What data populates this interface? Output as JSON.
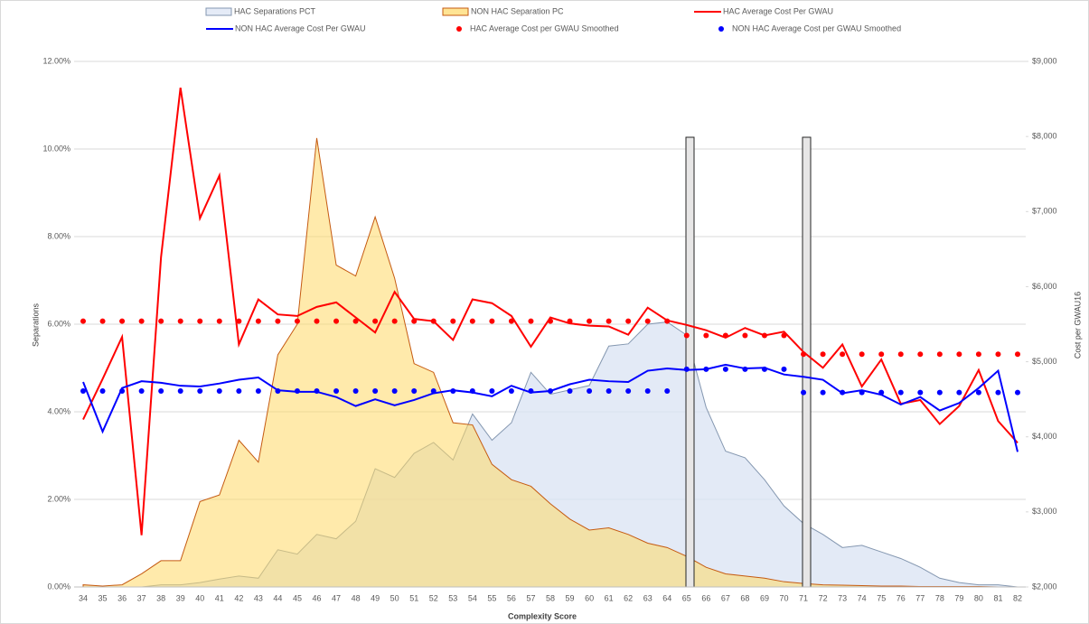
{
  "chart_data": {
    "type": "combo",
    "x_label": "Complexity Score",
    "y_label": "Separations",
    "y2_label": "Cost per GWAU16",
    "categories": [
      "34",
      "35",
      "36",
      "37",
      "38",
      "39",
      "40",
      "41",
      "42",
      "43",
      "44",
      "45",
      "46",
      "47",
      "48",
      "49",
      "50",
      "51",
      "52",
      "53",
      "54",
      "55",
      "56",
      "57",
      "58",
      "59",
      "60",
      "61",
      "62",
      "63",
      "64",
      "65",
      "66",
      "67",
      "68",
      "69",
      "70",
      "71",
      "72",
      "73",
      "74",
      "75",
      "76",
      "77",
      "78",
      "79",
      "80",
      "81",
      "82"
    ],
    "ylim": [
      0,
      12
    ],
    "yticks": [
      {
        "value": 0,
        "label": "0.00%"
      },
      {
        "value": 2,
        "label": "2.00%"
      },
      {
        "value": 4,
        "label": "4.00%"
      },
      {
        "value": 6,
        "label": "6.00%"
      },
      {
        "value": 8,
        "label": "8.00%"
      },
      {
        "value": 10,
        "label": "10.00%"
      },
      {
        "value": 12,
        "label": "12.00%"
      }
    ],
    "y2lim": [
      2000,
      9000
    ],
    "y2ticks": [
      {
        "value": 2000,
        "label": "$2,000"
      },
      {
        "value": 3000,
        "label": "$3,000"
      },
      {
        "value": 4000,
        "label": "$4,000"
      },
      {
        "value": 5000,
        "label": "$5,000"
      },
      {
        "value": 6000,
        "label": "$6,000"
      },
      {
        "value": 7000,
        "label": "$7,000"
      },
      {
        "value": 8000,
        "label": "$8,000"
      },
      {
        "value": 9000,
        "label": "$9,000"
      }
    ],
    "grid": true,
    "legend": "top",
    "series": [
      {
        "name": "HAC Separations PCT",
        "style": "area",
        "color": "#dae3f3",
        "edge": "#8497b0",
        "values": [
          0,
          0,
          0,
          0,
          0.05,
          0.05,
          0.1,
          0.18,
          0.25,
          0.2,
          0.85,
          0.75,
          1.2,
          1.1,
          1.5,
          2.7,
          2.5,
          3.05,
          3.3,
          2.9,
          3.95,
          3.35,
          3.75,
          4.9,
          4.4,
          4.5,
          4.6,
          5.5,
          5.55,
          6.0,
          6.05,
          5.75,
          4.1,
          3.1,
          2.95,
          2.45,
          1.85,
          1.45,
          1.2,
          0.9,
          0.95,
          0.8,
          0.65,
          0.45,
          0.2,
          0.1,
          0.05,
          0.05,
          0
        ]
      },
      {
        "name": "NON HAC Separation PC",
        "style": "area",
        "color": "#ffd966",
        "edge": "#c55a11",
        "values": [
          0.05,
          0.02,
          0.05,
          0.3,
          0.6,
          0.6,
          1.95,
          2.1,
          3.35,
          2.85,
          5.3,
          6.0,
          10.25,
          7.35,
          7.1,
          8.45,
          7.05,
          5.1,
          4.9,
          3.75,
          3.7,
          2.8,
          2.45,
          2.3,
          1.9,
          1.55,
          1.3,
          1.35,
          1.2,
          1.0,
          0.9,
          0.7,
          0.45,
          0.3,
          0.25,
          0.2,
          0.12,
          0.08,
          0.05,
          0.04,
          0.03,
          0.02,
          0.02,
          0.01,
          0.01,
          0.01,
          0.01,
          0,
          0
        ]
      },
      {
        "name": "HAC Average Cost Per GWAU",
        "style": "line",
        "color": "#ff0000",
        "axis": "y2",
        "values": [
          4230,
          4770,
          5330,
          2690,
          6390,
          8650,
          6910,
          7480,
          5230,
          5830,
          5630,
          5610,
          5730,
          5790,
          5590,
          5390,
          5930,
          5570,
          5540,
          5290,
          5830,
          5780,
          5610,
          5200,
          5590,
          5510,
          5480,
          5470,
          5360,
          5720,
          5550,
          5490,
          5420,
          5320,
          5450,
          5350,
          5400,
          5130,
          4920,
          5230,
          4670,
          5030,
          4440,
          4490,
          4170,
          4410,
          4890,
          4210,
          3920
        ]
      },
      {
        "name": "NON HAC Average Cost Per GWAU",
        "style": "line",
        "color": "#0000ff",
        "axis": "y2",
        "values": [
          4730,
          4070,
          4650,
          4740,
          4720,
          4680,
          4670,
          4710,
          4760,
          4790,
          4620,
          4600,
          4600,
          4530,
          4410,
          4500,
          4420,
          4490,
          4580,
          4620,
          4590,
          4540,
          4680,
          4590,
          4610,
          4700,
          4760,
          4740,
          4730,
          4880,
          4910,
          4890,
          4900,
          4960,
          4910,
          4920,
          4830,
          4800,
          4760,
          4580,
          4620,
          4560,
          4430,
          4530,
          4350,
          4450,
          4650,
          4880,
          3800
        ]
      },
      {
        "name": "HAC Average Cost per GWAU Smoothed",
        "style": "dots",
        "color": "#ff0000",
        "axis": "y2",
        "values": [
          5540,
          5540,
          5540,
          5540,
          5540,
          5540,
          5540,
          5540,
          5540,
          5540,
          5540,
          5540,
          5540,
          5540,
          5540,
          5540,
          5540,
          5540,
          5540,
          5540,
          5540,
          5540,
          5540,
          5540,
          5540,
          5540,
          5540,
          5540,
          5540,
          5540,
          5540,
          5350,
          5350,
          5350,
          5350,
          5350,
          5350,
          5100,
          5100,
          5100,
          5100,
          5100,
          5100,
          5100,
          5100,
          5100,
          5100,
          5100,
          5100
        ]
      },
      {
        "name": "NON HAC Average Cost per GWAU Smoothed",
        "style": "dots",
        "color": "#0000ff",
        "axis": "y2",
        "values": [
          4610,
          4610,
          4610,
          4610,
          4610,
          4610,
          4610,
          4610,
          4610,
          4610,
          4610,
          4610,
          4610,
          4610,
          4610,
          4610,
          4610,
          4610,
          4610,
          4610,
          4610,
          4610,
          4610,
          4610,
          4610,
          4610,
          4610,
          4610,
          4610,
          4610,
          4610,
          4900,
          4900,
          4900,
          4900,
          4900,
          4900,
          4590,
          4590,
          4590,
          4590,
          4590,
          4590,
          4590,
          4590,
          4590,
          4590,
          4590,
          4590
        ]
      }
    ]
  }
}
